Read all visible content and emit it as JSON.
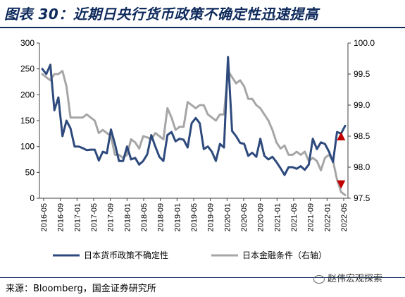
{
  "header": {
    "title": "图表 30：近期日央行货币政策不确定性迅速提高"
  },
  "footer": {
    "source": "来源：Bloomberg，国金证券研究所",
    "watermark": "赵伟宏观探索"
  },
  "chart_data": {
    "type": "line",
    "x_tick_labels": [
      "2016-05",
      "2016-09",
      "2017-01",
      "2017-05",
      "2017-09",
      "2018-01",
      "2018-05",
      "2018-09",
      "2019-01",
      "2019-05",
      "2019-09",
      "2020-01",
      "2020-05",
      "2020-09",
      "2021-01",
      "2021-05",
      "2021-09",
      "2022-01",
      "2022-05"
    ],
    "y_left": {
      "ticks": [
        "0",
        "50",
        "100",
        "150",
        "200",
        "250",
        "300"
      ],
      "ylim": [
        0,
        300
      ]
    },
    "y_right": {
      "ticks": [
        "97.5",
        "98.0",
        "98.5",
        "99.0",
        "99.5",
        "100.0"
      ],
      "ylim": [
        97.5,
        100.0
      ]
    },
    "series": [
      {
        "name": "日本货币政策不确定性",
        "axis": "left",
        "color": "#2e4a7d",
        "values": [
          250,
          240,
          258,
          170,
          195,
          120,
          150,
          135,
          100,
          100,
          97,
          93,
          94,
          94,
          73,
          90,
          87,
          133,
          105,
          72,
          72,
          100,
          75,
          78,
          65,
          72,
          85,
          122,
          100,
          80,
          72,
          122,
          128,
          110,
          115,
          113,
          98,
          145,
          155,
          145,
          95,
          100,
          90,
          72,
          105,
          98,
          273,
          130,
          120,
          107,
          105,
          82,
          88,
          80,
          115,
          82,
          75,
          80,
          70,
          58,
          45,
          60,
          60,
          57,
          62,
          55,
          65,
          115,
          95,
          108,
          105,
          90,
          70,
          128,
          125,
          140
        ]
      },
      {
        "name": "日本金融条件（右轴）",
        "axis": "right",
        "color": "#a6a6a6",
        "values": [
          99.5,
          99.45,
          99.4,
          99.5,
          99.5,
          99.55,
          99.3,
          98.8,
          98.8,
          98.8,
          98.8,
          98.85,
          98.8,
          98.75,
          98.55,
          98.6,
          98.55,
          98.5,
          98.2,
          98.2,
          98.15,
          98.2,
          98.45,
          98.4,
          98.3,
          98.5,
          98.48,
          98.45,
          98.55,
          98.5,
          98.45,
          98.95,
          98.8,
          98.6,
          98.65,
          98.65,
          99.05,
          99.0,
          98.95,
          99.0,
          99.0,
          98.85,
          98.8,
          98.75,
          98.85,
          98.85,
          99.55,
          99.45,
          99.35,
          99.4,
          99.3,
          99.1,
          99.1,
          99.0,
          98.95,
          98.85,
          98.75,
          98.6,
          98.4,
          98.3,
          98.35,
          98.2,
          98.2,
          98.25,
          98.2,
          98.25,
          98.1,
          98.15,
          98.1,
          97.95,
          98.15,
          98.2,
          98.1,
          97.8,
          97.6,
          97.55
        ]
      }
    ],
    "markers": [
      {
        "type": "triangle-up",
        "color": "#c00000",
        "axis": "right",
        "x_index": 74,
        "value": 98.5
      },
      {
        "type": "triangle-down",
        "color": "#c00000",
        "axis": "right",
        "x_index": 74,
        "value": 97.72
      }
    ],
    "legend_position": "bottom",
    "grid": false
  }
}
